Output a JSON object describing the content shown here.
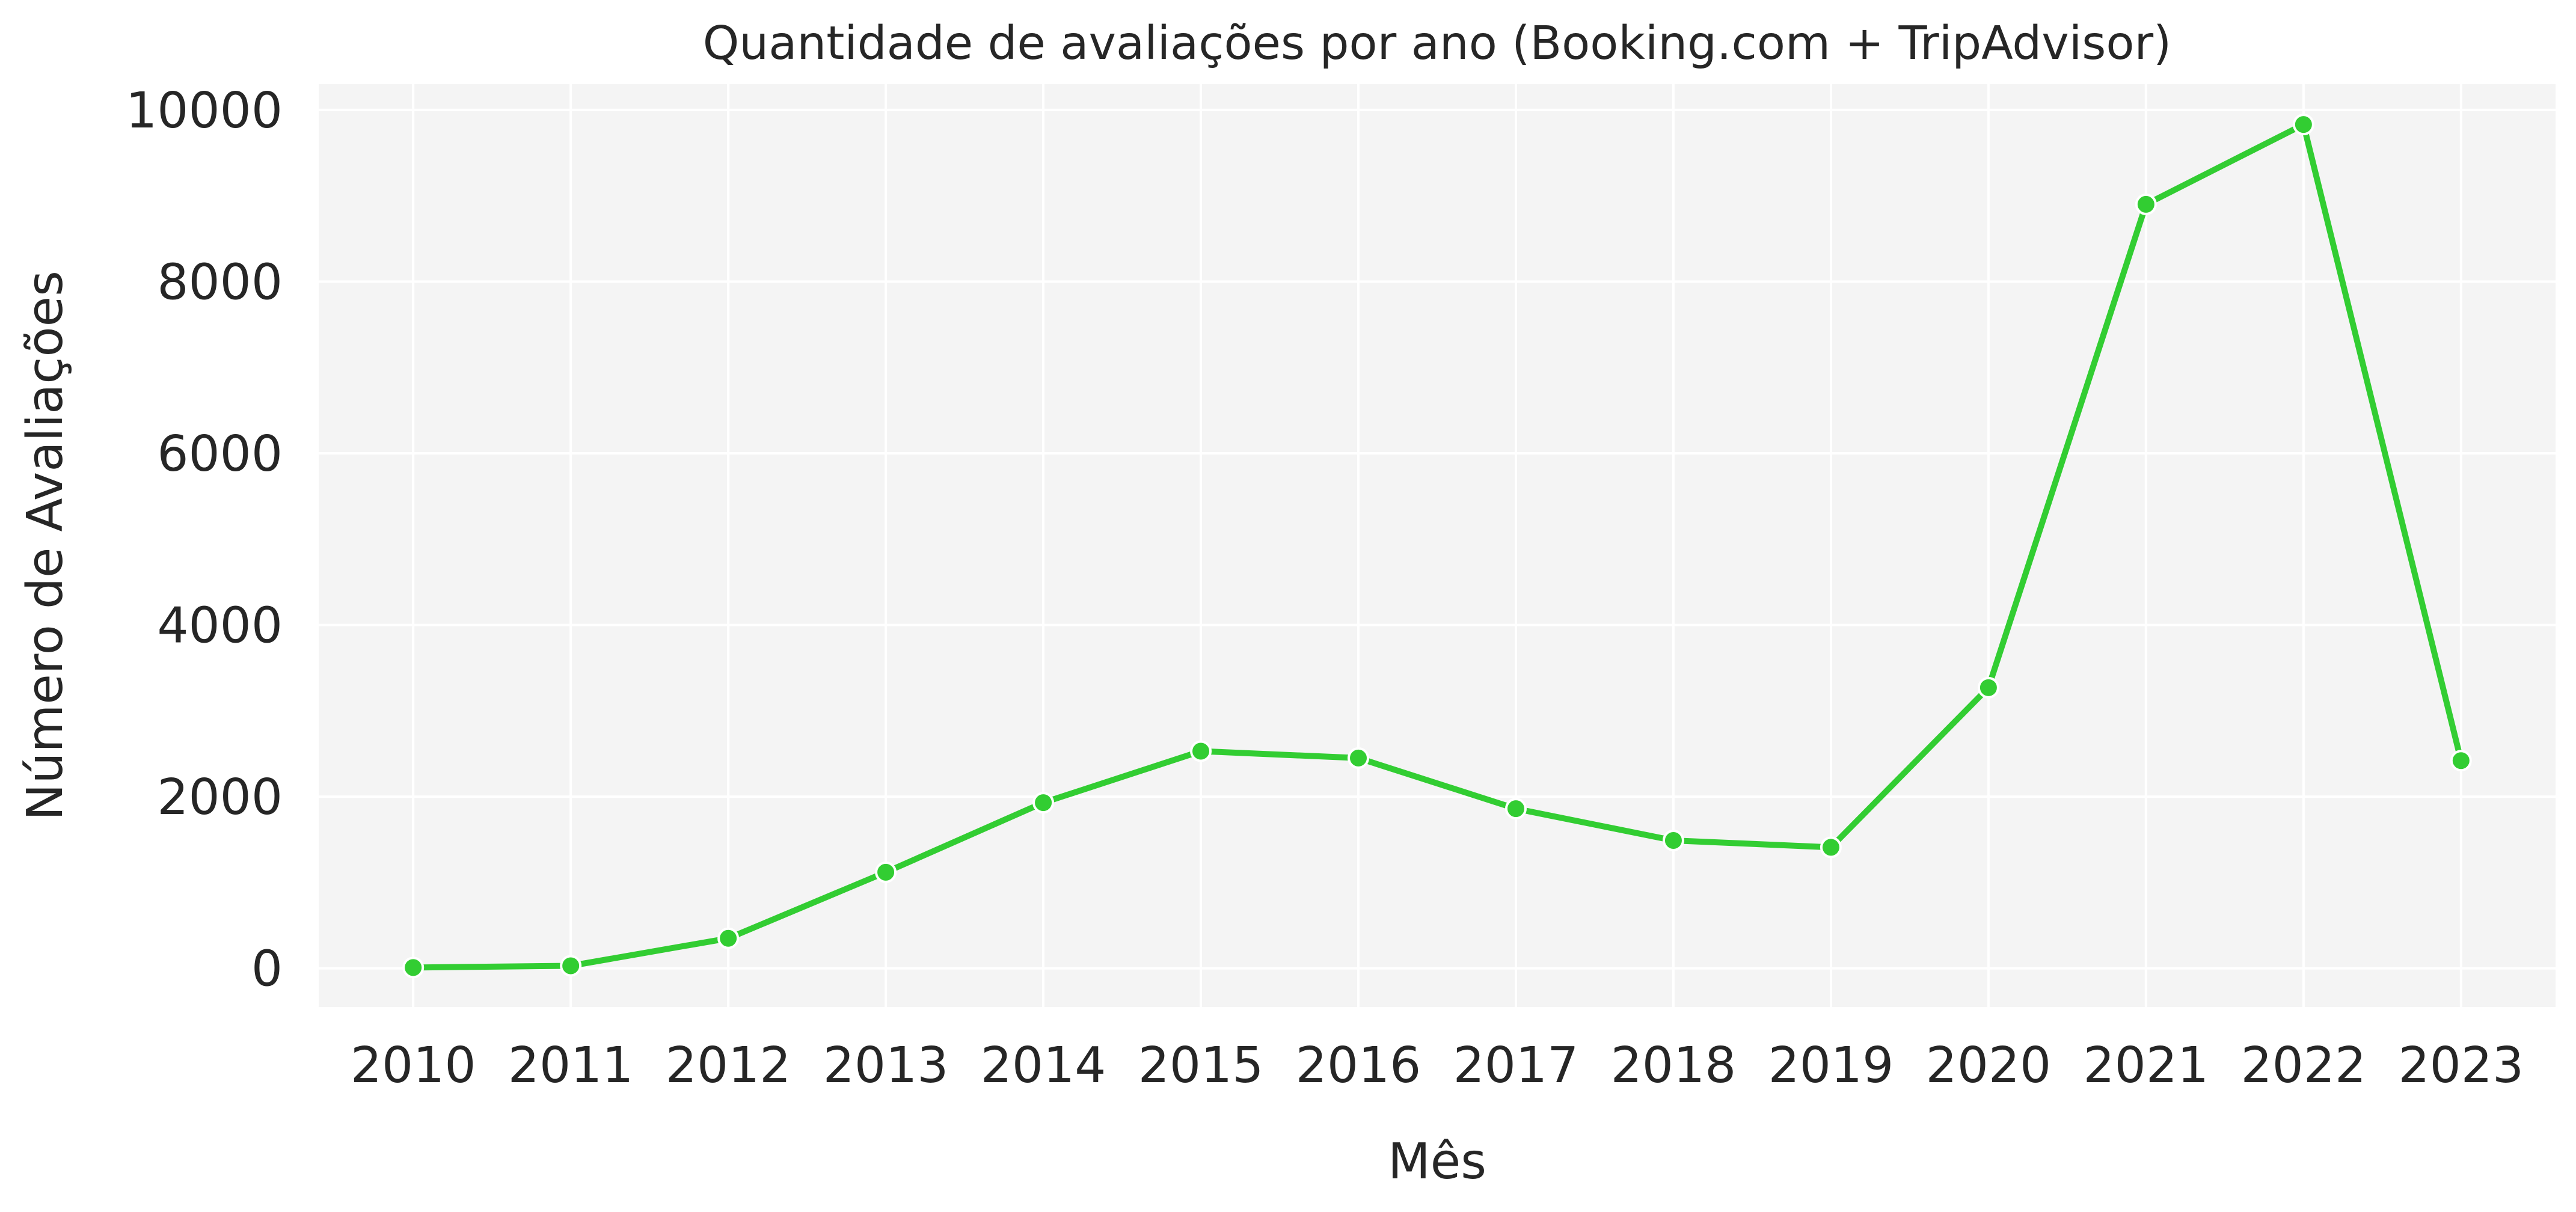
{
  "chart_data": {
    "type": "line",
    "title": "Quantidade de avaliações por ano (Booking.com + TripAdvisor)",
    "xlabel": "Mês",
    "ylabel": "Número de Avaliações",
    "x": [
      "2010",
      "2011",
      "2012",
      "2013",
      "2014",
      "2015",
      "2016",
      "2017",
      "2018",
      "2019",
      "2020",
      "2021",
      "2022",
      "2023"
    ],
    "series": [
      {
        "values": [
          10,
          30,
          350,
          1120,
          1930,
          2530,
          2450,
          1860,
          1490,
          1410,
          3270,
          8900,
          9830,
          2420
        ]
      }
    ],
    "yticks": [
      0,
      2000,
      4000,
      6000,
      8000,
      10000
    ],
    "ylim": [
      -450,
      10300
    ],
    "grid": true,
    "colors": {
      "line": "#32cd32",
      "plot_background": "#f4f4f4",
      "grid": "#ffffff",
      "marker_edge": "#ffffff"
    }
  }
}
